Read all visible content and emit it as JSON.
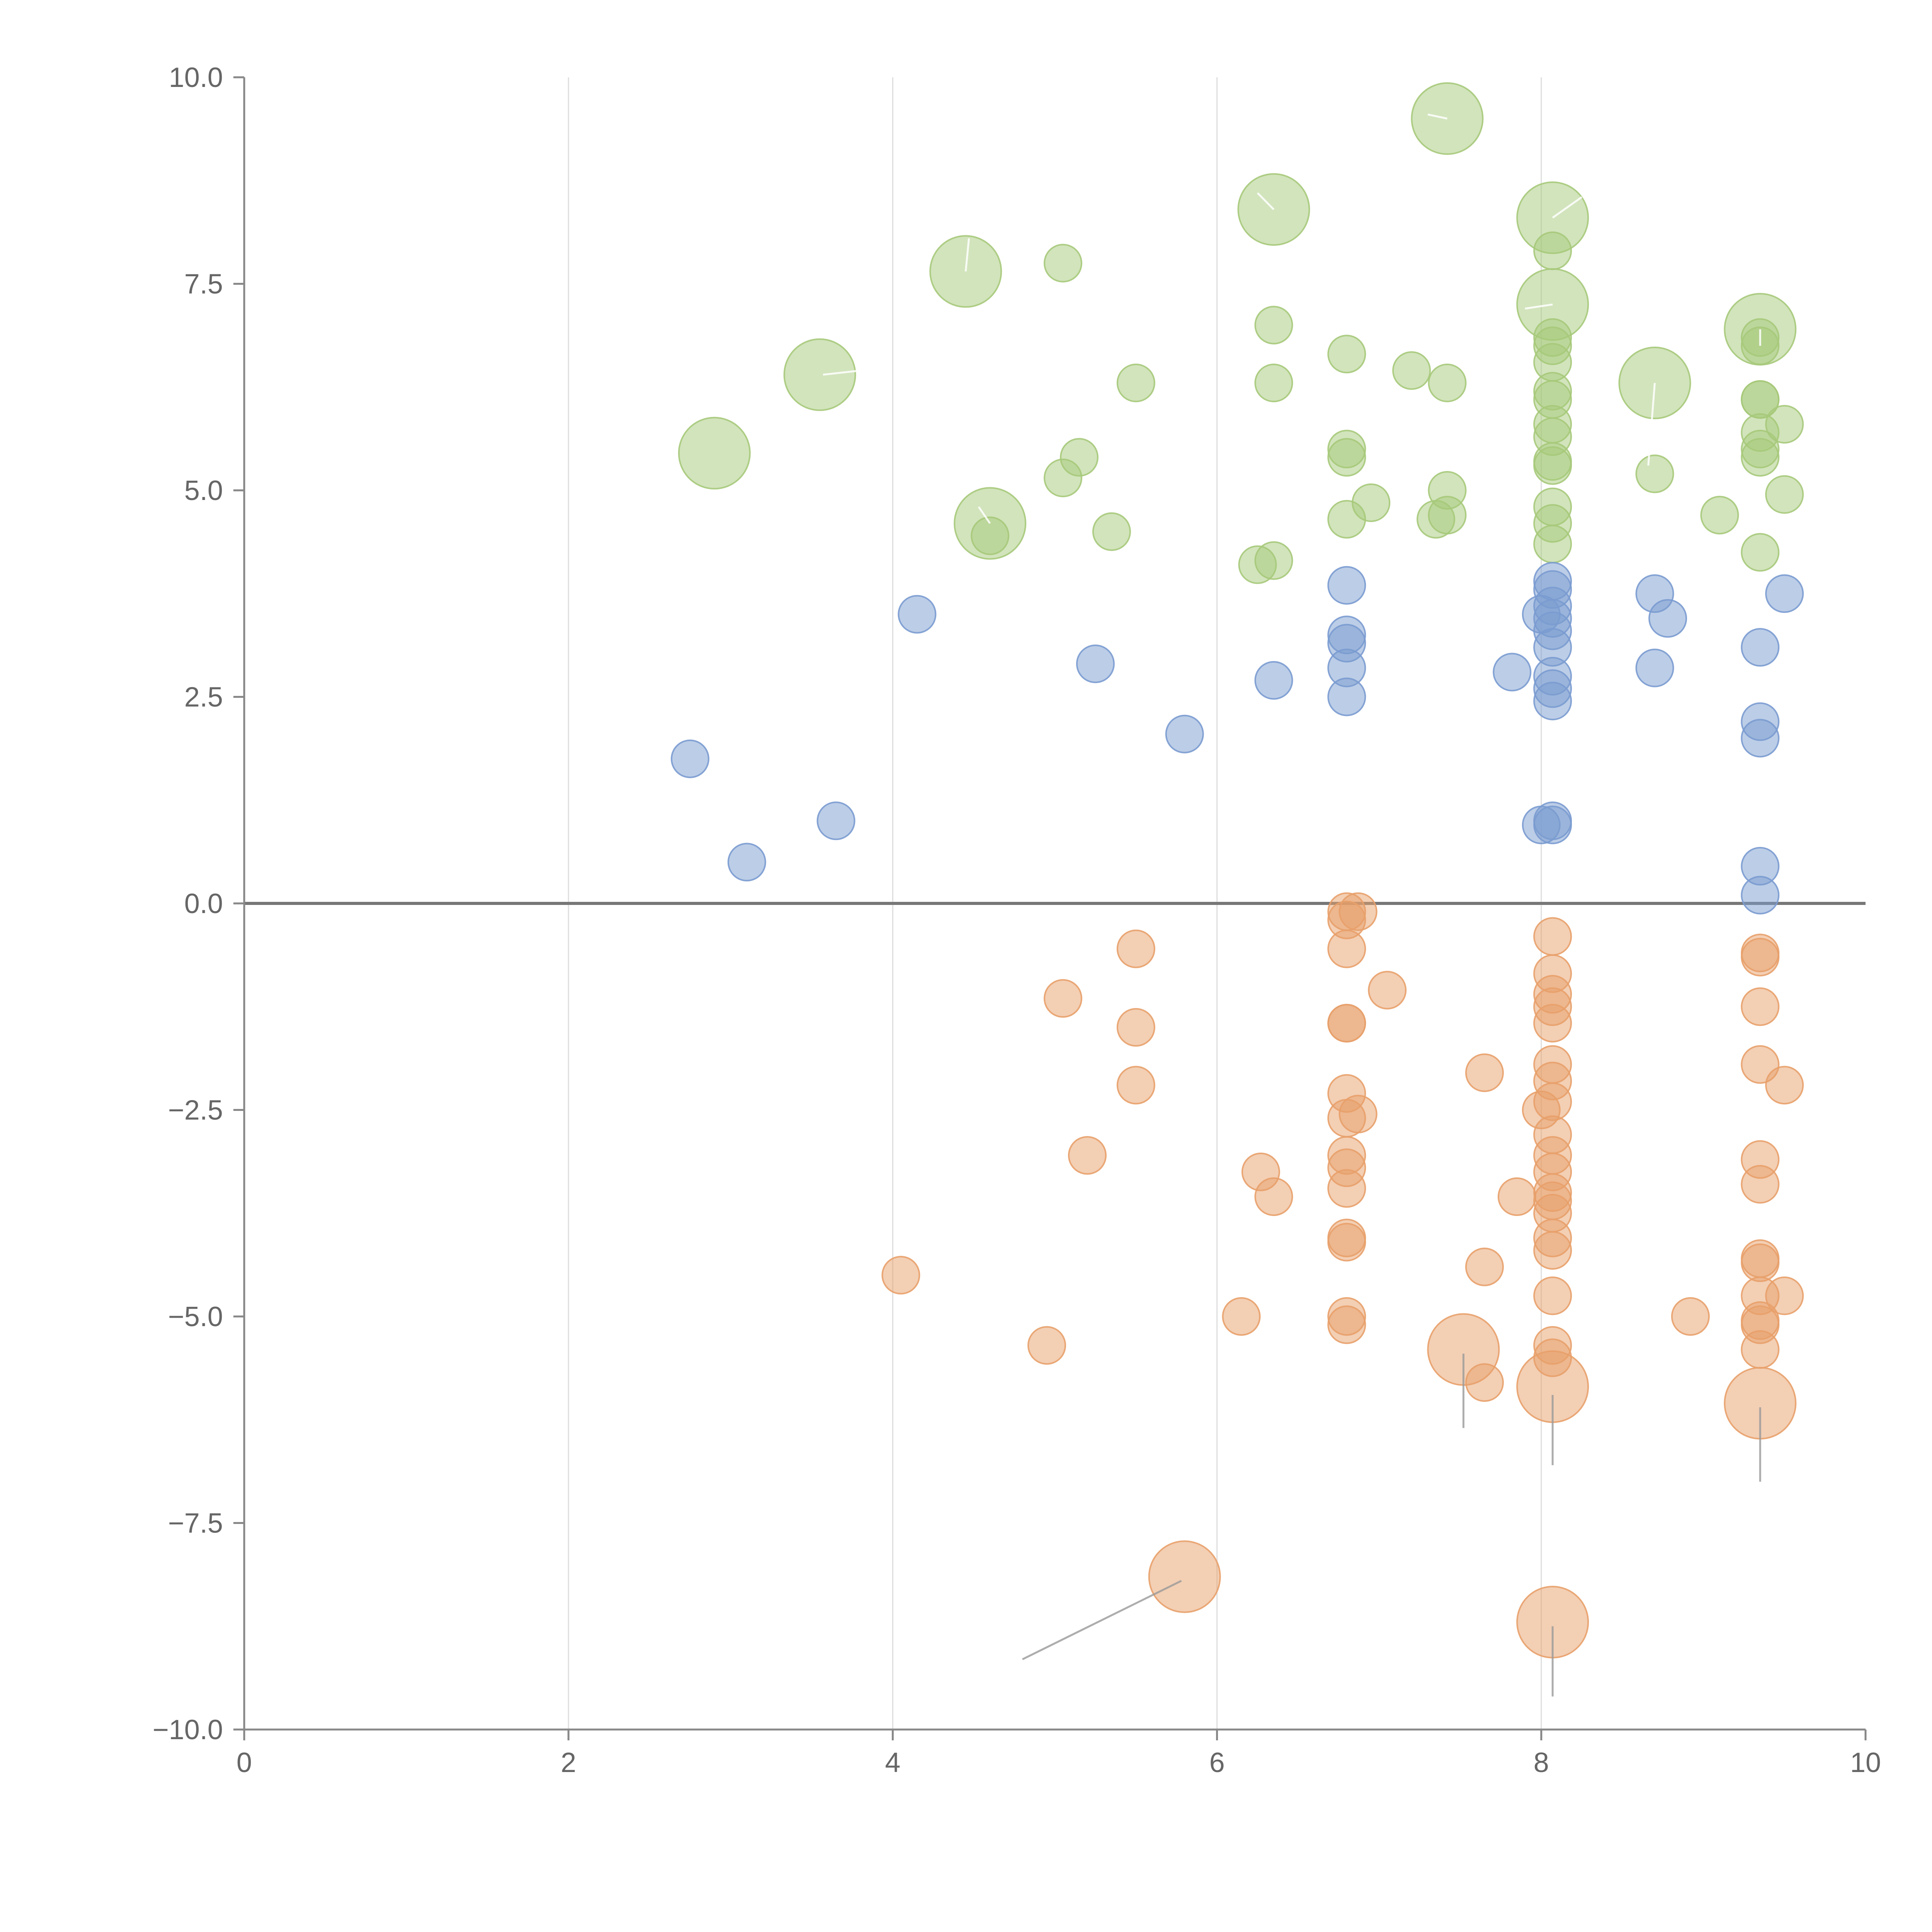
{
  "chart_data": {
    "type": "scatter",
    "title": "",
    "xlabel": "",
    "ylabel": "",
    "xlim": [
      0,
      10
    ],
    "ylim": [
      -10,
      10
    ],
    "x_ticks": [
      0,
      2,
      4,
      6,
      8,
      10
    ],
    "y_ticks": [
      -10.0,
      -7.5,
      -5.0,
      -2.5,
      0.0,
      2.5,
      5.0,
      7.5,
      10.0
    ],
    "x_tick_labels": [
      "0",
      "2",
      "4",
      "6",
      "8",
      "10"
    ],
    "y_tick_labels": [
      "−10.0",
      "−7.5",
      "−5.0",
      "−2.5",
      "0.0",
      "2.5",
      "5.0",
      "7.5",
      "10.0"
    ],
    "grid": "vertical",
    "zero_line": true,
    "legend": "none",
    "colors": {
      "green": "#a6c97a",
      "blue": "#7a9bd0",
      "orange": "#e8a06a",
      "axis": "#888888",
      "grid": "#dddddd",
      "zero_line": "#777777",
      "label_line_light": "#ffffff",
      "label_line_dark": "#999999"
    },
    "series": [
      {
        "name": "green",
        "color_key": "green",
        "points": [
          {
            "x": 2.9,
            "y": 5.45,
            "s": "large"
          },
          {
            "x": 3.55,
            "y": 6.4,
            "s": "large"
          },
          {
            "x": 4.45,
            "y": 7.65,
            "s": "large"
          },
          {
            "x": 4.6,
            "y": 4.6,
            "s": "large"
          },
          {
            "x": 4.6,
            "y": 4.45
          },
          {
            "x": 5.05,
            "y": 7.75
          },
          {
            "x": 5.05,
            "y": 5.15
          },
          {
            "x": 5.15,
            "y": 5.4
          },
          {
            "x": 5.35,
            "y": 4.5
          },
          {
            "x": 5.5,
            "y": 6.3
          },
          {
            "x": 6.25,
            "y": 4.1
          },
          {
            "x": 6.35,
            "y": 4.15
          },
          {
            "x": 6.35,
            "y": 7.0
          },
          {
            "x": 6.35,
            "y": 6.3
          },
          {
            "x": 6.35,
            "y": 8.4,
            "s": "large"
          },
          {
            "x": 6.8,
            "y": 6.65
          },
          {
            "x": 6.8,
            "y": 5.5
          },
          {
            "x": 6.8,
            "y": 5.4
          },
          {
            "x": 6.8,
            "y": 4.65
          },
          {
            "x": 6.95,
            "y": 4.85
          },
          {
            "x": 7.2,
            "y": 6.45
          },
          {
            "x": 7.35,
            "y": 4.65
          },
          {
            "x": 7.42,
            "y": 9.5,
            "s": "large"
          },
          {
            "x": 7.42,
            "y": 6.3
          },
          {
            "x": 7.42,
            "y": 5.0
          },
          {
            "x": 7.42,
            "y": 4.7
          },
          {
            "x": 8.07,
            "y": 8.3,
            "s": "large"
          },
          {
            "x": 8.07,
            "y": 7.25,
            "s": "large"
          },
          {
            "x": 8.07,
            "y": 7.9
          },
          {
            "x": 8.07,
            "y": 6.85
          },
          {
            "x": 8.07,
            "y": 6.75
          },
          {
            "x": 8.07,
            "y": 6.55
          },
          {
            "x": 8.07,
            "y": 6.2
          },
          {
            "x": 8.07,
            "y": 6.1
          },
          {
            "x": 8.07,
            "y": 5.8
          },
          {
            "x": 8.07,
            "y": 5.65
          },
          {
            "x": 8.07,
            "y": 5.35
          },
          {
            "x": 8.07,
            "y": 5.3
          },
          {
            "x": 8.07,
            "y": 4.8
          },
          {
            "x": 8.07,
            "y": 4.6
          },
          {
            "x": 8.07,
            "y": 4.35
          },
          {
            "x": 8.7,
            "y": 6.3,
            "s": "large"
          },
          {
            "x": 8.7,
            "y": 5.2
          },
          {
            "x": 9.1,
            "y": 4.7
          },
          {
            "x": 9.35,
            "y": 6.95,
            "s": "large"
          },
          {
            "x": 9.35,
            "y": 6.85
          },
          {
            "x": 9.35,
            "y": 6.75
          },
          {
            "x": 9.35,
            "y": 6.1
          },
          {
            "x": 9.35,
            "y": 6.1
          },
          {
            "x": 9.35,
            "y": 5.7
          },
          {
            "x": 9.35,
            "y": 5.5
          },
          {
            "x": 9.35,
            "y": 5.4
          },
          {
            "x": 9.35,
            "y": 4.25
          },
          {
            "x": 9.5,
            "y": 5.8
          },
          {
            "x": 9.5,
            "y": 4.95
          }
        ]
      },
      {
        "name": "blue",
        "color_key": "blue",
        "points": [
          {
            "x": 2.75,
            "y": 1.75
          },
          {
            "x": 3.1,
            "y": 0.5
          },
          {
            "x": 3.65,
            "y": 1.0
          },
          {
            "x": 4.15,
            "y": 3.5
          },
          {
            "x": 5.25,
            "y": 2.9
          },
          {
            "x": 5.8,
            "y": 2.05
          },
          {
            "x": 6.35,
            "y": 2.7
          },
          {
            "x": 6.8,
            "y": 3.85
          },
          {
            "x": 6.8,
            "y": 3.25
          },
          {
            "x": 6.8,
            "y": 3.15
          },
          {
            "x": 6.8,
            "y": 2.85
          },
          {
            "x": 6.8,
            "y": 2.5
          },
          {
            "x": 7.82,
            "y": 2.8
          },
          {
            "x": 8.0,
            "y": 3.5
          },
          {
            "x": 8.0,
            "y": 0.95
          },
          {
            "x": 8.07,
            "y": 3.9
          },
          {
            "x": 8.07,
            "y": 3.8
          },
          {
            "x": 8.07,
            "y": 3.6
          },
          {
            "x": 8.07,
            "y": 3.45
          },
          {
            "x": 8.07,
            "y": 3.3
          },
          {
            "x": 8.07,
            "y": 3.1
          },
          {
            "x": 8.07,
            "y": 2.75
          },
          {
            "x": 8.07,
            "y": 2.6
          },
          {
            "x": 8.07,
            "y": 2.45
          },
          {
            "x": 8.07,
            "y": 1.0
          },
          {
            "x": 8.07,
            "y": 0.95
          },
          {
            "x": 8.7,
            "y": 3.75
          },
          {
            "x": 8.7,
            "y": 2.85
          },
          {
            "x": 8.78,
            "y": 3.45
          },
          {
            "x": 9.35,
            "y": 3.1
          },
          {
            "x": 9.35,
            "y": 2.2
          },
          {
            "x": 9.35,
            "y": 2.0
          },
          {
            "x": 9.35,
            "y": 0.45
          },
          {
            "x": 9.35,
            "y": 0.1
          },
          {
            "x": 9.5,
            "y": 3.75
          }
        ]
      },
      {
        "name": "orange",
        "color_key": "orange",
        "points": [
          {
            "x": 4.05,
            "y": -4.5
          },
          {
            "x": 4.95,
            "y": -5.35
          },
          {
            "x": 5.05,
            "y": -1.15
          },
          {
            "x": 5.2,
            "y": -3.05
          },
          {
            "x": 5.5,
            "y": -0.55
          },
          {
            "x": 5.5,
            "y": -1.5
          },
          {
            "x": 5.5,
            "y": -2.2
          },
          {
            "x": 5.8,
            "y": -8.15,
            "s": "large"
          },
          {
            "x": 6.15,
            "y": -5.0
          },
          {
            "x": 6.27,
            "y": -3.25
          },
          {
            "x": 6.35,
            "y": -3.55
          },
          {
            "x": 6.8,
            "y": -0.1
          },
          {
            "x": 6.8,
            "y": -0.2
          },
          {
            "x": 6.8,
            "y": -0.55
          },
          {
            "x": 6.8,
            "y": -1.45
          },
          {
            "x": 6.8,
            "y": -1.45
          },
          {
            "x": 6.8,
            "y": -2.3
          },
          {
            "x": 6.8,
            "y": -2.6
          },
          {
            "x": 6.8,
            "y": -3.05
          },
          {
            "x": 6.8,
            "y": -3.2
          },
          {
            "x": 6.8,
            "y": -3.45
          },
          {
            "x": 6.8,
            "y": -4.05
          },
          {
            "x": 6.8,
            "y": -4.1
          },
          {
            "x": 6.8,
            "y": -5.0
          },
          {
            "x": 6.8,
            "y": -5.1
          },
          {
            "x": 6.87,
            "y": -0.1
          },
          {
            "x": 6.87,
            "y": -2.55
          },
          {
            "x": 7.05,
            "y": -1.05
          },
          {
            "x": 7.52,
            "y": -5.4,
            "s": "large"
          },
          {
            "x": 7.65,
            "y": -2.05
          },
          {
            "x": 7.65,
            "y": -4.4
          },
          {
            "x": 7.65,
            "y": -5.8
          },
          {
            "x": 7.85,
            "y": -3.55
          },
          {
            "x": 8.0,
            "y": -2.5
          },
          {
            "x": 8.07,
            "y": -0.4
          },
          {
            "x": 8.07,
            "y": -0.85
          },
          {
            "x": 8.07,
            "y": -1.1
          },
          {
            "x": 8.07,
            "y": -1.25
          },
          {
            "x": 8.07,
            "y": -1.45
          },
          {
            "x": 8.07,
            "y": -1.95
          },
          {
            "x": 8.07,
            "y": -2.15
          },
          {
            "x": 8.07,
            "y": -2.4
          },
          {
            "x": 8.07,
            "y": -2.8
          },
          {
            "x": 8.07,
            "y": -3.05
          },
          {
            "x": 8.07,
            "y": -3.25
          },
          {
            "x": 8.07,
            "y": -3.5
          },
          {
            "x": 8.07,
            "y": -3.6
          },
          {
            "x": 8.07,
            "y": -3.75
          },
          {
            "x": 8.07,
            "y": -4.05
          },
          {
            "x": 8.07,
            "y": -4.2
          },
          {
            "x": 8.07,
            "y": -4.75
          },
          {
            "x": 8.07,
            "y": -5.35
          },
          {
            "x": 8.07,
            "y": -5.5
          },
          {
            "x": 8.07,
            "y": -5.85,
            "s": "large"
          },
          {
            "x": 8.07,
            "y": -8.7,
            "s": "large"
          },
          {
            "x": 8.92,
            "y": -5.0
          },
          {
            "x": 9.35,
            "y": -0.6
          },
          {
            "x": 9.35,
            "y": -0.65
          },
          {
            "x": 9.35,
            "y": -1.25
          },
          {
            "x": 9.35,
            "y": -1.95
          },
          {
            "x": 9.35,
            "y": -3.1
          },
          {
            "x": 9.35,
            "y": -3.4
          },
          {
            "x": 9.35,
            "y": -4.3
          },
          {
            "x": 9.35,
            "y": -4.35
          },
          {
            "x": 9.35,
            "y": -4.75
          },
          {
            "x": 9.35,
            "y": -5.05
          },
          {
            "x": 9.35,
            "y": -5.1
          },
          {
            "x": 9.35,
            "y": -5.4
          },
          {
            "x": 9.35,
            "y": -6.05,
            "s": "large"
          },
          {
            "x": 9.5,
            "y": -2.2
          },
          {
            "x": 9.5,
            "y": -4.75
          }
        ]
      }
    ],
    "label_lines": [
      {
        "from": [
          3.57,
          6.4
        ],
        "to": [
          3.8,
          6.45
        ],
        "tone": "light"
      },
      {
        "from": [
          4.45,
          7.65
        ],
        "to": [
          4.47,
          8.05
        ],
        "tone": "light"
      },
      {
        "from": [
          4.6,
          4.6
        ],
        "to": [
          4.53,
          4.8
        ],
        "tone": "light"
      },
      {
        "from": [
          6.35,
          8.4
        ],
        "to": [
          6.25,
          8.6
        ],
        "tone": "light"
      },
      {
        "from": [
          7.42,
          9.5
        ],
        "to": [
          7.3,
          9.55
        ],
        "tone": "light"
      },
      {
        "from": [
          8.07,
          8.3
        ],
        "to": [
          8.25,
          8.55
        ],
        "tone": "light"
      },
      {
        "from": [
          8.07,
          7.25
        ],
        "to": [
          7.9,
          7.2
        ],
        "tone": "light"
      },
      {
        "from": [
          8.7,
          6.3
        ],
        "to": [
          8.66,
          5.3
        ],
        "tone": "light"
      },
      {
        "from": [
          9.35,
          6.95
        ],
        "to": [
          9.35,
          6.75
        ],
        "tone": "light"
      },
      {
        "from": [
          5.78,
          -8.2
        ],
        "to": [
          4.8,
          -9.15
        ],
        "tone": "dark"
      },
      {
        "from": [
          7.52,
          -5.45
        ],
        "to": [
          7.52,
          -6.35
        ],
        "tone": "dark"
      },
      {
        "from": [
          8.07,
          -5.95
        ],
        "to": [
          8.07,
          -6.8
        ],
        "tone": "dark"
      },
      {
        "from": [
          8.07,
          -8.75
        ],
        "to": [
          8.07,
          -9.6
        ],
        "tone": "dark"
      },
      {
        "from": [
          9.35,
          -6.1
        ],
        "to": [
          9.35,
          -7.0
        ],
        "tone": "dark"
      }
    ]
  }
}
